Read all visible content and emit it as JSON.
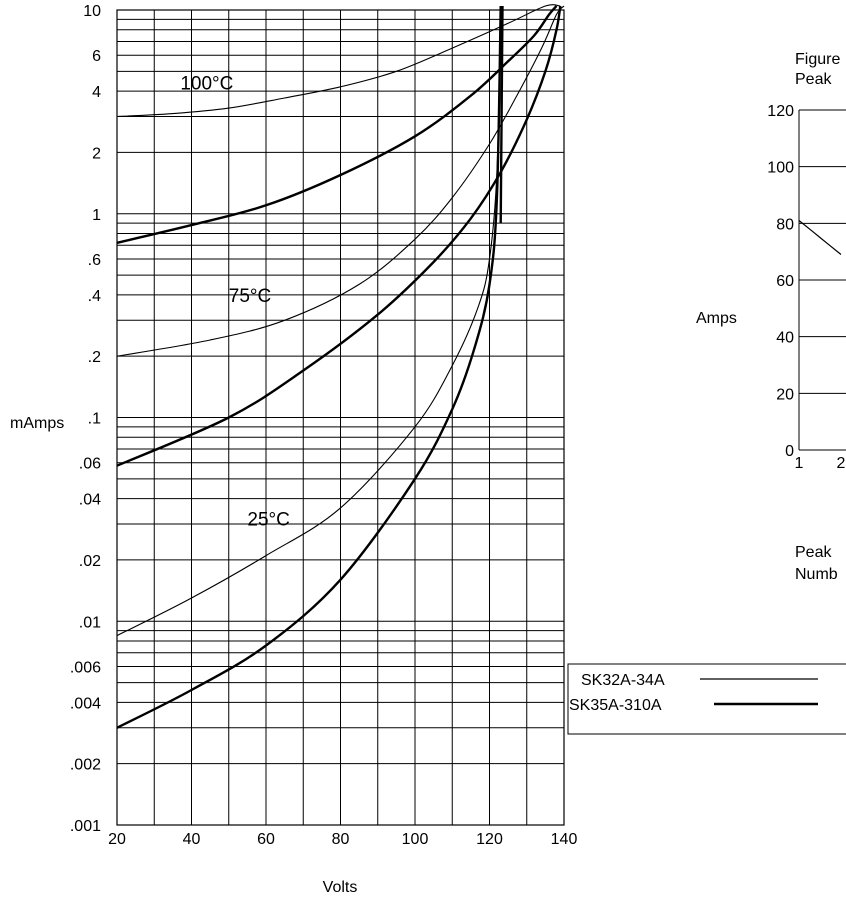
{
  "chart_data": [
    {
      "type": "line",
      "title": "",
      "xlabel": "Volts",
      "ylabel": "mAmps",
      "xlim": [
        20,
        140
      ],
      "ylim": [
        0.001,
        10
      ],
      "y_scale": "log",
      "grid": true,
      "x_ticks": [
        "20",
        "40",
        "60",
        "80",
        "100",
        "120",
        "140"
      ],
      "y_ticks": [
        {
          "value": 10,
          "label": "10"
        },
        {
          "value": 6,
          "label": "6"
        },
        {
          "value": 4,
          "label": "4"
        },
        {
          "value": 2,
          "label": "2"
        },
        {
          "value": 1,
          "label": "1"
        },
        {
          "value": 0.6,
          "label": ".6"
        },
        {
          "value": 0.4,
          "label": ".4"
        },
        {
          "value": 0.2,
          "label": ".2"
        },
        {
          "value": 0.1,
          "label": ".1"
        },
        {
          "value": 0.06,
          "label": ".06"
        },
        {
          "value": 0.04,
          "label": ".04"
        },
        {
          "value": 0.02,
          "label": ".02"
        },
        {
          "value": 0.01,
          "label": ".01"
        },
        {
          "value": 0.006,
          "label": ".006"
        },
        {
          "value": 0.004,
          "label": ".004"
        },
        {
          "value": 0.002,
          "label": ".002"
        },
        {
          "value": 0.001,
          "label": ".001"
        }
      ],
      "annotations": [
        {
          "text": "100°C",
          "x": 37,
          "y": 4.4
        },
        {
          "text": "75°C",
          "x": 50,
          "y": 0.4
        },
        {
          "text": "25°C",
          "x": 55,
          "y": 0.032
        }
      ],
      "series": [
        {
          "name": "SK32A-34A",
          "temperature": "100°C",
          "weight": "thin",
          "x": [
            20,
            35,
            50,
            65,
            80,
            95,
            110,
            125,
            135,
            139
          ],
          "y": [
            3.0,
            3.1,
            3.3,
            3.7,
            4.2,
            5.0,
            6.5,
            8.6,
            10.5,
            11.5
          ]
        },
        {
          "name": "SK35A-310A",
          "temperature": "100°C",
          "weight": "thick",
          "x": [
            20,
            40,
            60,
            80,
            100,
            115,
            125,
            132,
            136,
            138
          ],
          "y": [
            0.72,
            0.88,
            1.1,
            1.55,
            2.4,
            3.8,
            5.6,
            7.5,
            9.5,
            11.0
          ]
        },
        {
          "name": "SK32A-34A",
          "temperature": "75°C",
          "weight": "thin",
          "x": [
            20,
            45,
            65,
            85,
            100,
            110,
            120,
            128,
            134,
            138,
            140
          ],
          "y": [
            0.2,
            0.24,
            0.3,
            0.45,
            0.75,
            1.2,
            2.2,
            4.0,
            6.5,
            9.5,
            11.5
          ]
        },
        {
          "name": "SK35A-310A",
          "temperature": "75°C",
          "weight": "thick",
          "x": [
            20,
            50,
            70,
            90,
            105,
            115,
            123,
            130,
            135,
            138,
            139
          ],
          "y": [
            0.058,
            0.1,
            0.17,
            0.32,
            0.58,
            0.95,
            1.6,
            2.9,
            5.0,
            8.0,
            11.0
          ]
        },
        {
          "name": "SK32A-34A",
          "temperature": "25°C",
          "weight": "thin",
          "x": [
            20,
            40,
            60,
            80,
            100,
            110,
            117,
            120,
            122,
            123
          ],
          "y": [
            0.0085,
            0.013,
            0.021,
            0.036,
            0.09,
            0.18,
            0.35,
            0.6,
            1.6,
            12.0
          ]
        },
        {
          "name": "SK35A-310A",
          "temperature": "25°C",
          "weight": "thick",
          "x": [
            20,
            40,
            60,
            80,
            100,
            110,
            116,
            120,
            122,
            123
          ],
          "y": [
            0.003,
            0.0046,
            0.0076,
            0.016,
            0.05,
            0.11,
            0.22,
            0.45,
            1.2,
            12.0
          ]
        },
        {
          "name": "SK35A-310A",
          "temperature": "",
          "weight": "thick",
          "x": [
            123,
            123.5
          ],
          "y": [
            0.9,
            12.0
          ]
        }
      ]
    },
    {
      "type": "line",
      "title": "Figure",
      "subtitle": "Peak",
      "ylabel": "Amps",
      "xlabel": "Peak",
      "xlabel2": "Numb",
      "ylim": [
        0,
        120
      ],
      "y_ticks": [
        "0",
        "20",
        "40",
        "60",
        "80",
        "100",
        "120"
      ],
      "x_ticks": [
        "1",
        "2"
      ],
      "grid": true,
      "series": [
        {
          "name": "",
          "x": [
            1,
            1.5,
            2
          ],
          "y": [
            81,
            75,
            69
          ]
        }
      ]
    }
  ],
  "legend": {
    "items": [
      {
        "label": "SK32A-34A",
        "weight": "thin"
      },
      {
        "label": "SK35A-310A",
        "weight": "thick"
      }
    ]
  },
  "colors": {
    "ink": "#000000",
    "background": "#ffffff"
  }
}
